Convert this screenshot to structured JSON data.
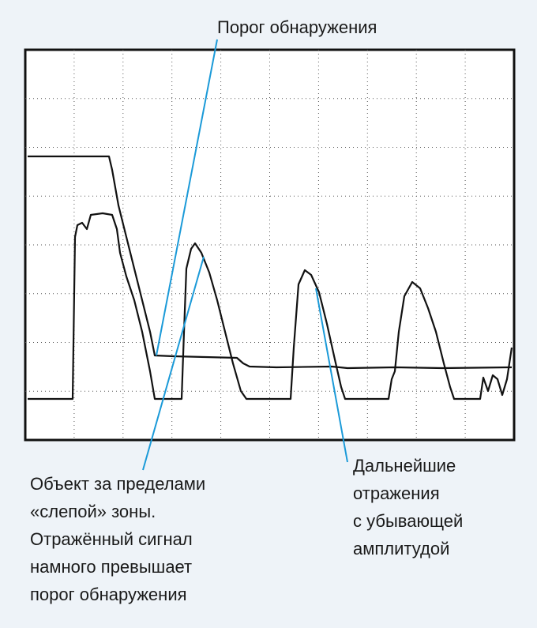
{
  "labels": {
    "threshold": "Порог обнаружения",
    "object": [
      "Объект за пределами",
      "«слепой» зоны.",
      "Отражённый сигнал",
      "намного превышает",
      "порог обнаружения"
    ],
    "reflections": [
      "Дальнейшие",
      "отражения",
      "с убывающей",
      "амплитудой"
    ]
  }
}
